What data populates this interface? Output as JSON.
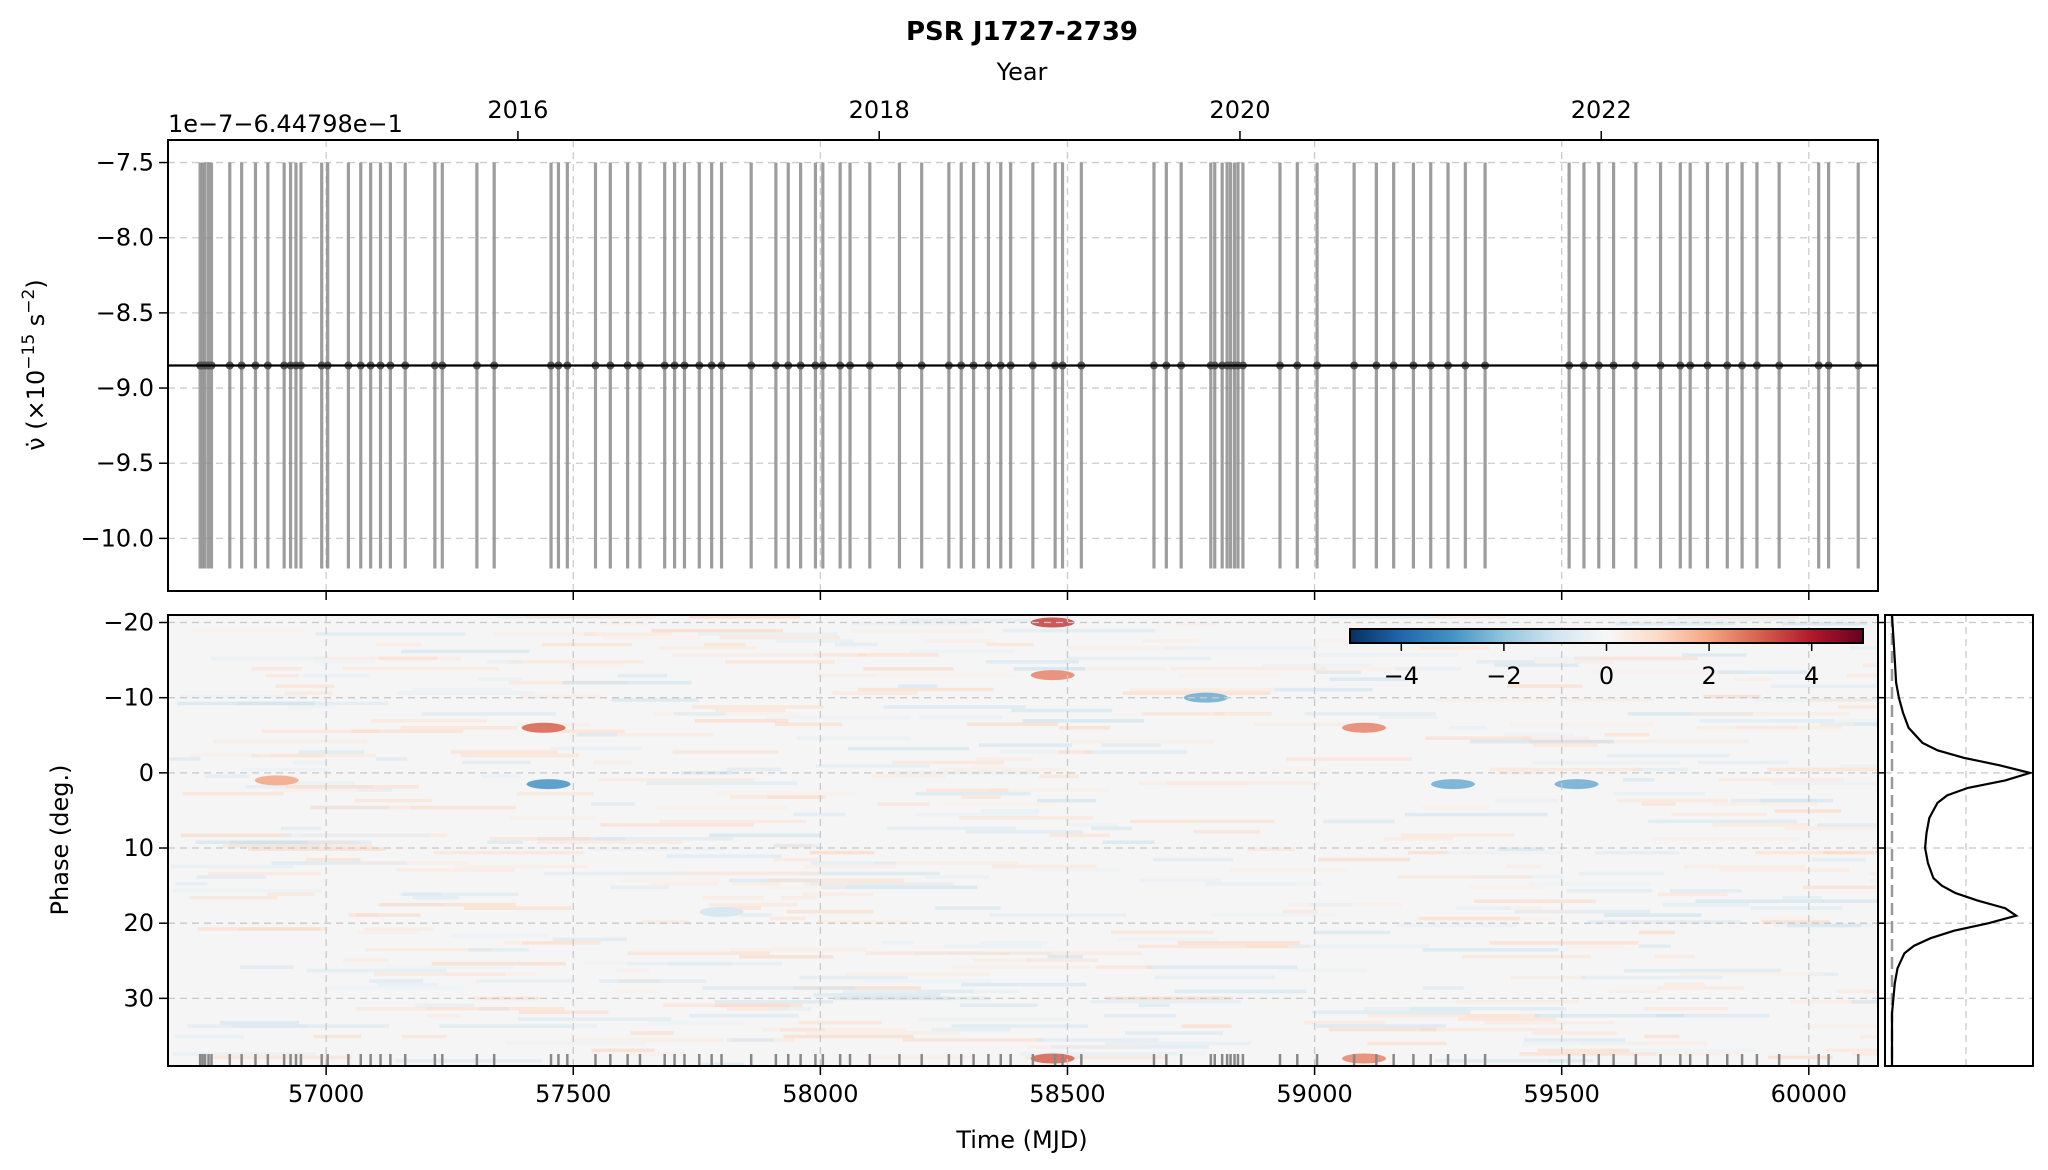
{
  "figure": {
    "title": "PSR J1727-2739"
  },
  "chart_data": [
    {
      "type": "scatter",
      "panel": "spin-down time series",
      "title": "PSR J1727-2739",
      "xlabel": "Time (MJD)",
      "ylabel": "ν̇ (×10⁻¹⁵ s⁻²)",
      "ylabel_main": "ν̇ (×10",
      "ylabel_exp": "−15",
      "ylabel_unit": " s",
      "ylabel_unit_exp": "−2",
      "ylabel_close": ")",
      "offset_text": "1e−7−6.44798e−1",
      "top_axis_label": "Year",
      "top_ticks": [
        "2016",
        "2018",
        "2020",
        "2022"
      ],
      "top_tick_mjd": [
        57388,
        58119,
        58849,
        59580
      ],
      "xlim": [
        56680,
        60140
      ],
      "ylim": [
        -10.35,
        -7.35
      ],
      "yticks": [
        -7.5,
        -8.0,
        -8.5,
        -9.0,
        -9.5,
        -10.0
      ],
      "ytick_labels": [
        "−7.5",
        "−8.0",
        "−8.5",
        "−9.0",
        "−9.5",
        "−10.0"
      ],
      "grid": true,
      "line_value": -8.85,
      "points_y": -8.85,
      "errorbar_range": [
        -10.2,
        -7.5
      ],
      "colors": {
        "errorbar": "#8c8c8c",
        "line": "#000000",
        "grid": "#cccccc"
      },
      "x": [
        56745,
        56750,
        56755,
        56762,
        56768,
        56805,
        56829,
        56857,
        56882,
        56915,
        56928,
        56939,
        56949,
        56991,
        57003,
        57045,
        57070,
        57090,
        57110,
        57130,
        57160,
        57220,
        57235,
        57305,
        57340,
        57455,
        57470,
        57488,
        57545,
        57575,
        57610,
        57635,
        57685,
        57705,
        57725,
        57755,
        57780,
        57800,
        57860,
        57910,
        57935,
        57960,
        57990,
        58005,
        58040,
        58060,
        58100,
        58160,
        58205,
        58260,
        58285,
        58310,
        58340,
        58365,
        58385,
        58430,
        58475,
        58490,
        58528,
        58675,
        58700,
        58730,
        58790,
        58798,
        58813,
        58823,
        58830,
        58838,
        58845,
        58855,
        58930,
        58965,
        59005,
        59080,
        59125,
        59160,
        59200,
        59235,
        59270,
        59305,
        59345,
        59515,
        59545,
        59575,
        59605,
        59650,
        59700,
        59740,
        59760,
        59795,
        59835,
        59865,
        59895,
        59940,
        60020,
        60040,
        60100
      ]
    },
    {
      "type": "heatmap",
      "panel": "phase-resolved residuals",
      "xlabel": "Time (MJD)",
      "ylabel": "Phase (deg.)",
      "xlim": [
        56680,
        60140
      ],
      "xticks": [
        57000,
        57500,
        58000,
        58500,
        59000,
        59500,
        60000
      ],
      "xtick_labels": [
        "57000",
        "57500",
        "58000",
        "58500",
        "59000",
        "59500",
        "60000"
      ],
      "ylim": [
        -21,
        39
      ],
      "yticks": [
        -20,
        -10,
        0,
        10,
        20,
        30
      ],
      "ytick_labels": [
        "−20",
        "−10",
        "0",
        "10",
        "20",
        "30"
      ],
      "y_inverted": true,
      "grid": true,
      "colormap": "RdBu_r",
      "colorbar": {
        "range": [
          -5,
          5
        ],
        "ticks": [
          -4,
          -2,
          0,
          2,
          4
        ],
        "tick_labels": [
          "−4",
          "−2",
          "0",
          "2",
          "4"
        ],
        "placement": "top-right",
        "stops": [
          "#053061",
          "#2166ac",
          "#4393c3",
          "#92c5de",
          "#d1e5f0",
          "#f7f7f7",
          "#fddbc7",
          "#f4a582",
          "#d6604d",
          "#b2182b",
          "#67001f"
        ]
      },
      "features": [
        {
          "name": "red band at MJD 58470",
          "x": 58470,
          "y": -20,
          "value": 3.5
        },
        {
          "name": "red band at MJD 58470",
          "x": 58470,
          "y": -13,
          "value": 2.5
        },
        {
          "name": "red band at MJD 58470",
          "x": 58470,
          "y": 38,
          "value": 3
        },
        {
          "name": "red patch at MJD 57440",
          "x": 57440,
          "y": -6,
          "value": 3
        },
        {
          "name": "blue patch at MJD 57450",
          "x": 57450,
          "y": 1.5,
          "value": -3
        },
        {
          "name": "blue patches at MJD 58780",
          "x": 58780,
          "y": -10,
          "value": -2.5
        },
        {
          "name": "red patch at MJD 59100",
          "x": 59100,
          "y": -6,
          "value": 2.5
        },
        {
          "name": "blue patch at MJD 59280",
          "x": 59280,
          "y": 1.5,
          "value": -2.5
        },
        {
          "name": "blue patch at MJD 59530",
          "x": 59530,
          "y": 1.5,
          "value": -2.5
        },
        {
          "name": "blue band near 19 deg",
          "x": 57800,
          "y": 18.5,
          "value": -1
        },
        {
          "name": "red patch at MJD 56900",
          "x": 56900,
          "y": 1,
          "value": 2
        },
        {
          "name": "red patch at MJD 59100",
          "x": 59100,
          "y": 38,
          "value": 2.5
        }
      ]
    },
    {
      "type": "line",
      "panel": "pulse profile",
      "orientation": "vertical",
      "ylim": [
        -21,
        39
      ],
      "profile_phase": [
        -21,
        -18,
        -15,
        -12,
        -10,
        -8,
        -6,
        -4,
        -3,
        -2,
        -1,
        0,
        1,
        2,
        3,
        4,
        5,
        6,
        8,
        10,
        12,
        14,
        15,
        16,
        17,
        18,
        19,
        20,
        21,
        22,
        23,
        24,
        26,
        28,
        30,
        32,
        34,
        36,
        39
      ],
      "profile_intensity": [
        0.0,
        0.01,
        0.02,
        0.03,
        0.05,
        0.08,
        0.12,
        0.22,
        0.33,
        0.52,
        0.78,
        1.0,
        0.82,
        0.55,
        0.4,
        0.33,
        0.3,
        0.27,
        0.25,
        0.24,
        0.26,
        0.3,
        0.36,
        0.46,
        0.62,
        0.82,
        0.9,
        0.7,
        0.45,
        0.28,
        0.16,
        0.09,
        0.04,
        0.02,
        0.01,
        0.0,
        0.0,
        0.0,
        0.0
      ]
    }
  ]
}
